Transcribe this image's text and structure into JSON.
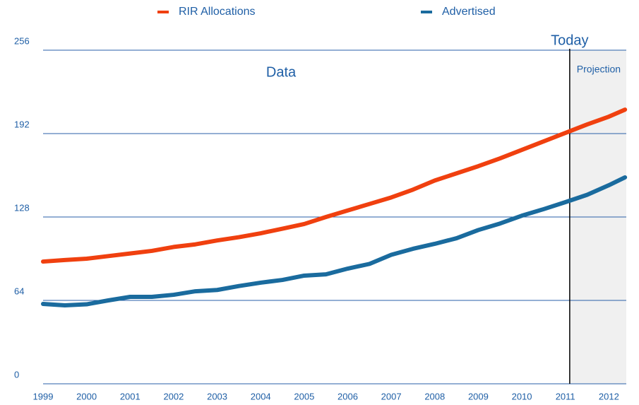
{
  "chart_data": {
    "type": "line",
    "x": [
      1999,
      1999.5,
      2000,
      2000.5,
      2001,
      2001.5,
      2002,
      2002.5,
      2003,
      2003.5,
      2004,
      2004.5,
      2005,
      2005.5,
      2006,
      2006.5,
      2007,
      2007.5,
      2008,
      2008.5,
      2009,
      2009.5,
      2010,
      2010.5,
      2011,
      2011.5,
      2012,
      2012.37
    ],
    "series": [
      {
        "name": "RIR Allocations",
        "color": "#f0400f",
        "values": [
          93.8,
          95,
          96,
          98,
          100,
          102,
          105,
          107,
          110,
          112.5,
          115.5,
          119,
          122.6,
          128,
          133,
          138,
          143,
          149,
          156,
          161.5,
          167,
          173,
          179.5,
          186,
          192.5,
          199,
          205,
          210.4
        ]
      },
      {
        "name": "Advertised",
        "color": "#1a6b9e",
        "values": [
          61.3,
          60.2,
          61,
          64,
          66.7,
          66.7,
          68.3,
          71,
          72,
          75,
          77.6,
          79.7,
          83,
          84,
          88.4,
          92,
          99,
          103.6,
          107.4,
          111.7,
          118,
          123,
          129,
          134,
          139.4,
          145,
          152.4,
          158.4
        ]
      }
    ],
    "xlim": [
      1999,
      2012.4
    ],
    "ylim": [
      0,
      256
    ],
    "xticks": [
      1999,
      2000,
      2001,
      2002,
      2003,
      2004,
      2005,
      2006,
      2007,
      2008,
      2009,
      2010,
      2011,
      2012
    ],
    "yticks": [
      0,
      64,
      128,
      192,
      256
    ],
    "grid": true,
    "annotations": {
      "today": {
        "text": "Today",
        "x": 2011.1
      },
      "data": "Data",
      "projection": "Projection"
    }
  }
}
